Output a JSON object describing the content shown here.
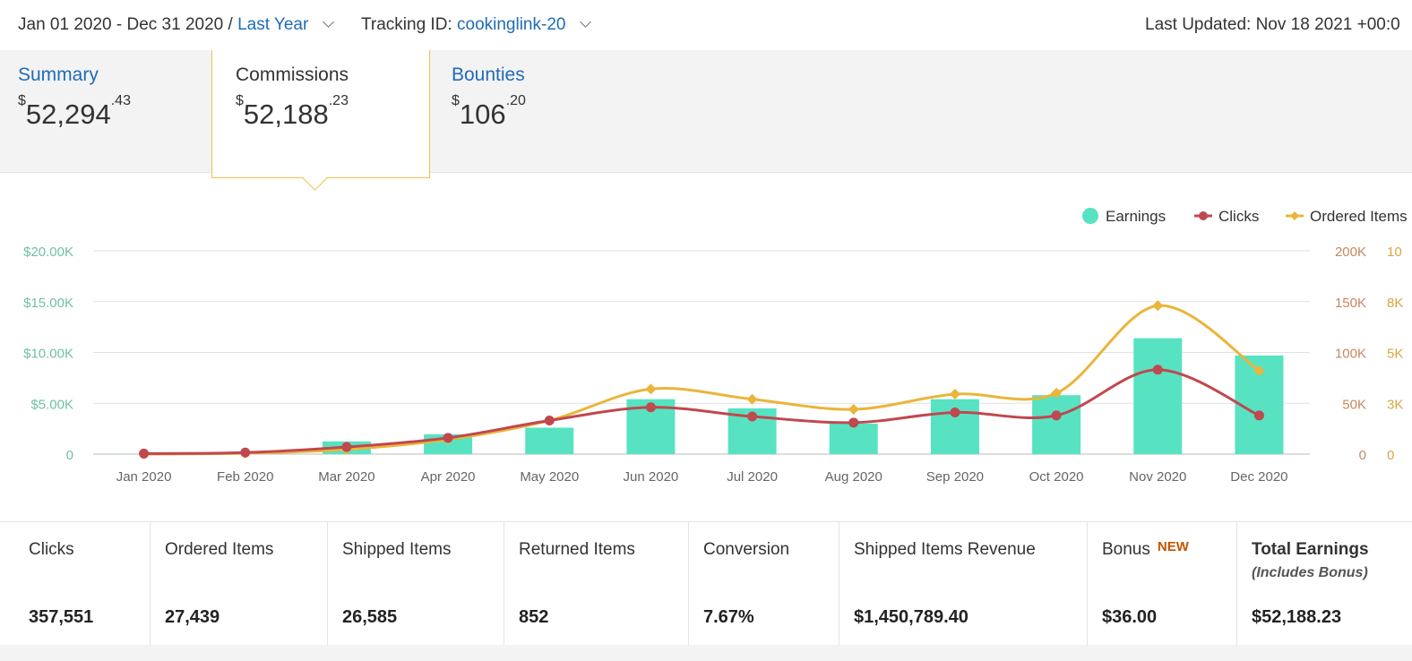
{
  "topbar": {
    "date_range": "Jan 01 2020 - Dec 31 2020 /",
    "range_preset": "Last Year",
    "tracking_label": "Tracking ID:",
    "tracking_id": "cookinglink-20",
    "last_updated": "Last Updated: Nov 18 2021 +00:0"
  },
  "tabs": {
    "summary": {
      "label": "Summary",
      "currency": "$",
      "whole": "52,294",
      "cents": ".43"
    },
    "commissions": {
      "label": "Commissions",
      "currency": "$",
      "whole": "52,188",
      "cents": ".23"
    },
    "bounties": {
      "label": "Bounties",
      "currency": "$",
      "whole": "106",
      "cents": ".20"
    }
  },
  "chart_data": {
    "type": "bar",
    "categories": [
      "Jan 2020",
      "Feb 2020",
      "Mar 2020",
      "Apr 2020",
      "May 2020",
      "Jun 2020",
      "Jul 2020",
      "Aug 2020",
      "Sep 2020",
      "Oct 2020",
      "Nov 2020",
      "Dec 2020"
    ],
    "legend_placement": "top-right",
    "grid": true,
    "left_axis": {
      "ticks": [
        "$20.00K",
        "$15.00K",
        "$10.00K",
        "$5.00K",
        "0"
      ],
      "range": [
        0,
        20000
      ]
    },
    "right_axis_1": {
      "ticks": [
        "200K",
        "150K",
        "100K",
        "50K",
        "0"
      ],
      "range": [
        0,
        200000
      ]
    },
    "right_axis_2": {
      "ticks": [
        "10",
        "8K",
        "5K",
        "3K",
        "0"
      ],
      "range": [
        0,
        10000
      ]
    },
    "series": [
      {
        "name": "Earnings",
        "kind": "bar",
        "axis": "left",
        "color": "#57e3c2",
        "values": [
          20,
          150,
          1250,
          1950,
          2600,
          5400,
          4500,
          3000,
          5400,
          5800,
          11400,
          9700
        ]
      },
      {
        "name": "Clicks",
        "kind": "line",
        "axis": "right_axis_1",
        "color": "#c0484f",
        "values": [
          500,
          1500,
          7000,
          16000,
          33000,
          46000,
          37000,
          31000,
          41000,
          38000,
          83000,
          38000
        ]
      },
      {
        "name": "Ordered Items",
        "kind": "line",
        "axis": "right_axis_2",
        "color": "#eab53a",
        "values": [
          0,
          40,
          230,
          720,
          1650,
          3200,
          2700,
          2200,
          2950,
          3000,
          7300,
          4100
        ]
      }
    ]
  },
  "stats": [
    {
      "label": "Clicks",
      "value": "357,551"
    },
    {
      "label": "Ordered Items",
      "value": "27,439"
    },
    {
      "label": "Shipped Items",
      "value": "26,585"
    },
    {
      "label": "Returned Items",
      "value": "852"
    },
    {
      "label": "Conversion",
      "value": "7.67%"
    },
    {
      "label": "Shipped Items Revenue",
      "value": "$1,450,789.40"
    },
    {
      "label": "Bonus",
      "badge": "NEW",
      "value": "$36.00"
    },
    {
      "label": "Total Earnings",
      "sub": "(Includes Bonus)",
      "value": "$52,188.23"
    }
  ],
  "colors": {
    "link": "#1f6cb5",
    "accent_border": "#f0c14b"
  }
}
